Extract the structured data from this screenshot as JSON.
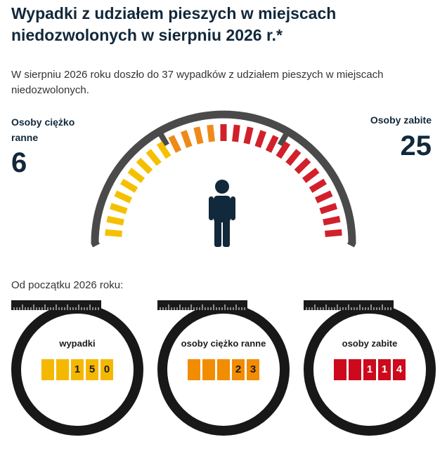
{
  "title": "Wypadki z udziałem pieszych w miejscach niedozwolonych w sierpniu 2026 r.*",
  "intro": "W sierpniu 2026 roku doszło do 37 wypadków z udziałem pieszych w miejscach niedozwolonych.",
  "gauge": {
    "left_label": "Osoby ciężko ranne",
    "left_value": "6",
    "right_label": "Osoby zabite",
    "right_value": "25",
    "icon": "pedestrian-icon",
    "colors": {
      "yellow": "#f5c000",
      "orange": "#ee8a1a",
      "red": "#d2202a",
      "arc": "#4a4a4a"
    }
  },
  "section_title": "Od początku 2026 roku:",
  "counters": [
    {
      "label": "wypadki",
      "digits": [
        "",
        "",
        "1",
        "5",
        "0"
      ],
      "color": "#f5b800",
      "text_color": "#1b1b1b"
    },
    {
      "label": "osoby ciężko ranne",
      "digits": [
        "",
        "",
        "",
        "2",
        "3"
      ],
      "color": "#f28c00",
      "text_color": "#1b1b1b"
    },
    {
      "label": "osoby zabite",
      "digits": [
        "",
        "",
        "1",
        "1",
        "4"
      ],
      "color": "#cc0a1c",
      "text_color": "#ffffff"
    }
  ]
}
